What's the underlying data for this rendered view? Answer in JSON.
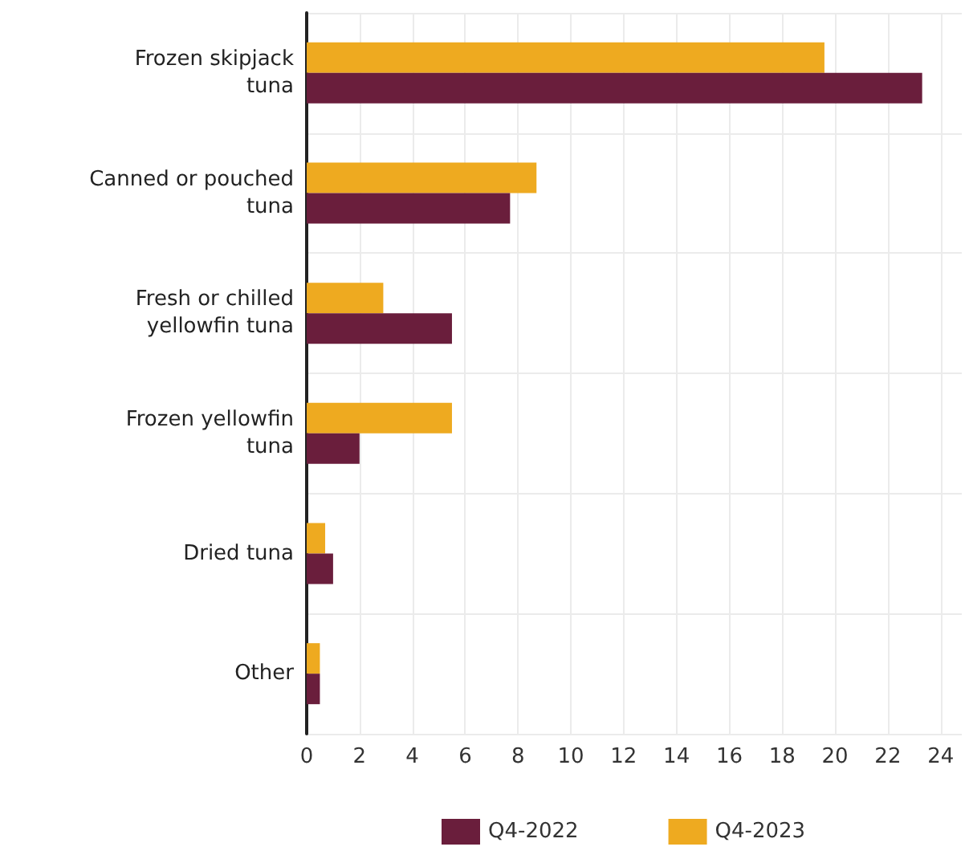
{
  "chart_data": {
    "type": "bar",
    "orientation": "horizontal",
    "categories": [
      "Frozen skipjack tuna",
      "Canned or pouched tuna",
      "Fresh or chilled yellowfin tuna",
      "Frozen yellowfin tuna",
      "Dried tuna",
      "Other"
    ],
    "series": [
      {
        "name": "Q4-2022",
        "color": "#6a1e3c",
        "values": [
          23.3,
          7.7,
          5.5,
          2.0,
          1.0,
          0.5
        ]
      },
      {
        "name": "Q4-2023",
        "color": "#eeaa20",
        "values": [
          19.6,
          8.7,
          2.9,
          5.5,
          0.7,
          0.5
        ]
      }
    ],
    "xlim": [
      0,
      24.8
    ],
    "xticks": [
      0,
      2,
      4,
      6,
      8,
      10,
      12,
      14,
      16,
      18,
      20,
      22,
      24
    ],
    "grid": true,
    "legend": "bottom"
  }
}
